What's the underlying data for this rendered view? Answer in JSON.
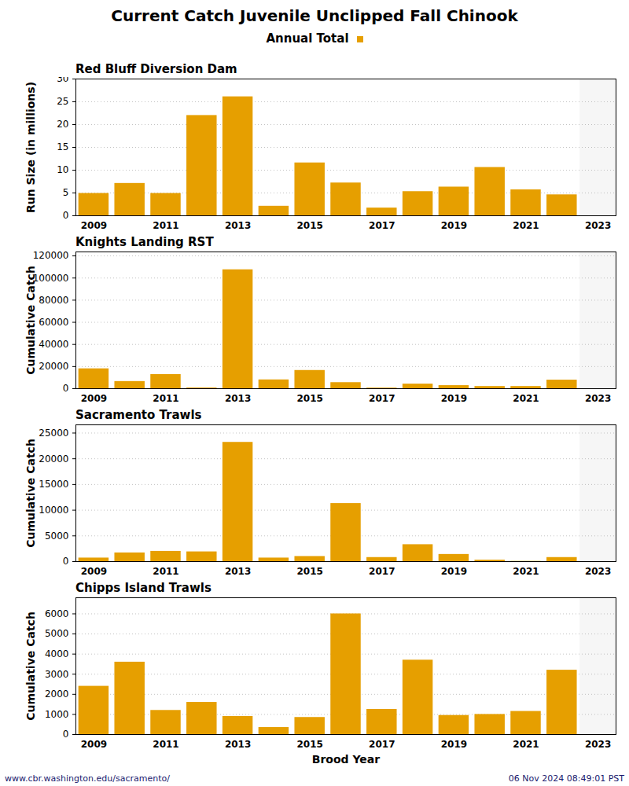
{
  "title": "Current Catch Juvenile Unclipped Fall Chinook",
  "footer": {
    "left": "www.cbr.washington.edu/sacramento/",
    "right": "06 Nov 2024 08:49:01 PST"
  },
  "chart_data": [
    {
      "type": "bar",
      "title": "Red Bluff Diversion Dam",
      "ylabel": "Run Size (in millions)",
      "x": [
        2009,
        2010,
        2011,
        2012,
        2013,
        2014,
        2015,
        2016,
        2017,
        2018,
        2019,
        2020,
        2021,
        2022,
        2023
      ],
      "series": [
        {
          "name": "Annual Total",
          "color": "#E69F00",
          "values": [
            4.9,
            7.1,
            4.9,
            22.0,
            26.1,
            2.1,
            11.6,
            7.2,
            1.7,
            5.3,
            6.3,
            10.6,
            5.7,
            4.6,
            null
          ]
        }
      ],
      "xlim": [
        2008.5,
        2023.5
      ],
      "xticks": [
        2009,
        2011,
        2013,
        2015,
        2017,
        2019,
        2021,
        2023
      ],
      "ylim": [
        0,
        30
      ],
      "yticks": [
        0,
        5,
        10,
        15,
        20,
        25,
        30
      ],
      "grid": true
    },
    {
      "type": "bar",
      "title": "Knights Landing RST",
      "ylabel": "Cumulative Catch",
      "x": [
        2009,
        2010,
        2011,
        2012,
        2013,
        2014,
        2015,
        2016,
        2017,
        2018,
        2019,
        2020,
        2021,
        2022,
        2023
      ],
      "series": [
        {
          "name": "Annual Total",
          "color": "#E69F00",
          "values": [
            18000,
            6500,
            12800,
            700,
            107500,
            8000,
            16500,
            5500,
            600,
            4200,
            2800,
            2000,
            2000,
            7800,
            null
          ]
        }
      ],
      "xlim": [
        2008.5,
        2023.5
      ],
      "xticks": [
        2009,
        2011,
        2013,
        2015,
        2017,
        2019,
        2021,
        2023
      ],
      "ylim": [
        0,
        123600
      ],
      "yticks": [
        0,
        20000,
        40000,
        60000,
        80000,
        100000,
        120000
      ],
      "grid": true
    },
    {
      "type": "bar",
      "title": "Sacramento Trawls",
      "ylabel": "Cumulative Catch",
      "x": [
        2009,
        2010,
        2011,
        2012,
        2013,
        2014,
        2015,
        2016,
        2017,
        2018,
        2019,
        2020,
        2021,
        2022,
        2023
      ],
      "series": [
        {
          "name": "Annual Total",
          "color": "#E69F00",
          "values": [
            700,
            1700,
            2000,
            1900,
            23200,
            700,
            1000,
            11300,
            800,
            3300,
            1400,
            300,
            50,
            800,
            null
          ]
        }
      ],
      "xlim": [
        2008.5,
        2023.5
      ],
      "xticks": [
        2009,
        2011,
        2013,
        2015,
        2017,
        2019,
        2021,
        2023
      ],
      "ylim": [
        0,
        26600
      ],
      "yticks": [
        0,
        5000,
        10000,
        15000,
        20000,
        25000
      ],
      "grid": true
    },
    {
      "type": "bar",
      "title": "Chipps Island Trawls",
      "ylabel": "Cumulative Catch",
      "xlabel": "Brood Year",
      "x": [
        2009,
        2010,
        2011,
        2012,
        2013,
        2014,
        2015,
        2016,
        2017,
        2018,
        2019,
        2020,
        2021,
        2022,
        2023
      ],
      "series": [
        {
          "name": "Annual Total",
          "color": "#E69F00",
          "values": [
            2400,
            3600,
            1200,
            1600,
            900,
            350,
            850,
            6000,
            1250,
            3700,
            950,
            1000,
            1150,
            3200,
            null
          ]
        }
      ],
      "xlim": [
        2008.5,
        2023.5
      ],
      "xticks": [
        2009,
        2011,
        2013,
        2015,
        2017,
        2019,
        2021,
        2023
      ],
      "ylim": [
        0,
        6800
      ],
      "yticks": [
        0,
        1000,
        2000,
        3000,
        4000,
        5000,
        6000
      ],
      "grid": true
    }
  ]
}
